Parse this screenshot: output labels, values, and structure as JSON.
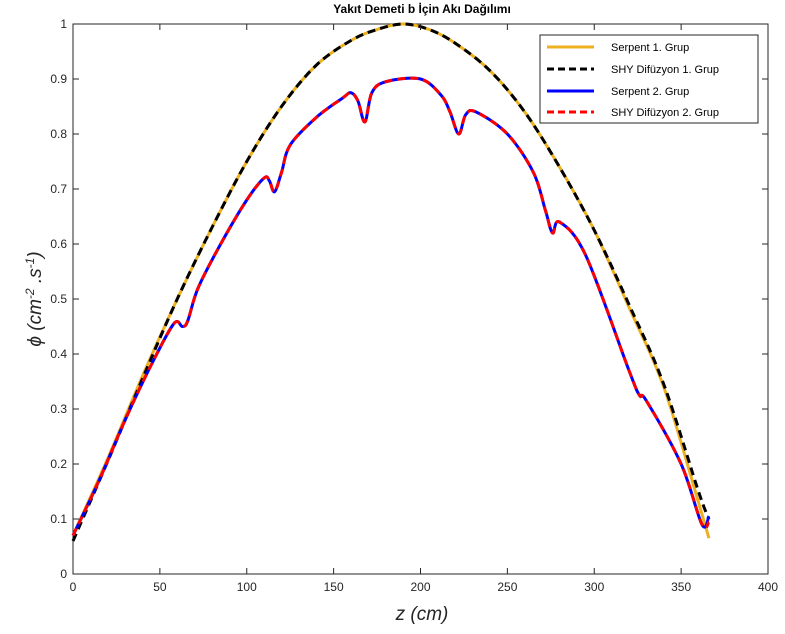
{
  "chart_data": {
    "type": "line",
    "title": "Yakıt Demeti b İçin Akı Dağılımı",
    "xlabel": "z (cm)",
    "ylabel": {
      "base": "ϕ (cm",
      "exp1": "-2",
      "mid": " .s",
      "exp2": "-1",
      "end": ")"
    },
    "xlim": [
      0,
      400
    ],
    "ylim": [
      0,
      1
    ],
    "xticks": [
      0,
      50,
      100,
      150,
      200,
      250,
      300,
      350,
      400
    ],
    "yticks": [
      0,
      0.1,
      0.2,
      0.3,
      0.4,
      0.5,
      0.6,
      0.7,
      0.8,
      0.9,
      1
    ],
    "grid": false,
    "legend_position": "top-right",
    "series": [
      {
        "name": "Serpent 1. Grup",
        "color": "#EDB120",
        "dash": "solid",
        "x": [
          0,
          20,
          40,
          60,
          80,
          100,
          120,
          140,
          160,
          175,
          190,
          205,
          220,
          240,
          260,
          280,
          300,
          320,
          340,
          360,
          366
        ],
        "y": [
          0.07,
          0.21,
          0.36,
          0.5,
          0.63,
          0.75,
          0.85,
          0.925,
          0.97,
          0.99,
          1.0,
          0.99,
          0.965,
          0.915,
          0.84,
          0.74,
          0.625,
          0.485,
          0.34,
          0.13,
          0.065
        ]
      },
      {
        "name": "SHY Difüzyon 1. Grup",
        "color": "#000000",
        "dash": "dashed",
        "x": [
          0,
          20,
          40,
          60,
          80,
          100,
          120,
          140,
          160,
          175,
          190,
          205,
          220,
          240,
          260,
          280,
          300,
          320,
          340,
          360,
          366
        ],
        "y": [
          0.06,
          0.205,
          0.355,
          0.5,
          0.63,
          0.75,
          0.85,
          0.925,
          0.97,
          0.99,
          1.0,
          0.99,
          0.965,
          0.915,
          0.84,
          0.74,
          0.625,
          0.49,
          0.345,
          0.15,
          0.1
        ]
      },
      {
        "name": "Serpent 2. Grup",
        "color": "#0000FF",
        "dash": "solid",
        "x": [
          0,
          15,
          30,
          45,
          58,
          63,
          66,
          72,
          85,
          100,
          110,
          113,
          116,
          120,
          125,
          140,
          155,
          160,
          164,
          168,
          172,
          180,
          200,
          212,
          217,
          222,
          226,
          232,
          250,
          265,
          272,
          276,
          280,
          295,
          320,
          326,
          330,
          350,
          362,
          366
        ],
        "y": [
          0.07,
          0.17,
          0.28,
          0.38,
          0.455,
          0.45,
          0.46,
          0.52,
          0.6,
          0.68,
          0.72,
          0.715,
          0.695,
          0.73,
          0.78,
          0.83,
          0.865,
          0.875,
          0.86,
          0.822,
          0.875,
          0.895,
          0.9,
          0.87,
          0.84,
          0.8,
          0.835,
          0.84,
          0.8,
          0.73,
          0.66,
          0.62,
          0.64,
          0.58,
          0.37,
          0.325,
          0.315,
          0.2,
          0.09,
          0.105
        ]
      },
      {
        "name": "SHY Difüzyon 2. Grup",
        "color": "#FF0000",
        "dash": "dashed",
        "x": [
          0,
          15,
          30,
          45,
          58,
          63,
          66,
          72,
          85,
          100,
          110,
          113,
          116,
          120,
          125,
          140,
          155,
          160,
          164,
          168,
          172,
          180,
          200,
          212,
          217,
          222,
          226,
          232,
          250,
          265,
          272,
          276,
          280,
          295,
          320,
          326,
          330,
          350,
          362,
          366
        ],
        "y": [
          0.07,
          0.17,
          0.28,
          0.38,
          0.455,
          0.45,
          0.46,
          0.52,
          0.6,
          0.68,
          0.72,
          0.715,
          0.695,
          0.73,
          0.78,
          0.83,
          0.865,
          0.875,
          0.86,
          0.822,
          0.875,
          0.895,
          0.9,
          0.87,
          0.84,
          0.8,
          0.835,
          0.84,
          0.8,
          0.73,
          0.66,
          0.62,
          0.64,
          0.58,
          0.37,
          0.325,
          0.315,
          0.2,
          0.09,
          0.095
        ]
      }
    ]
  }
}
